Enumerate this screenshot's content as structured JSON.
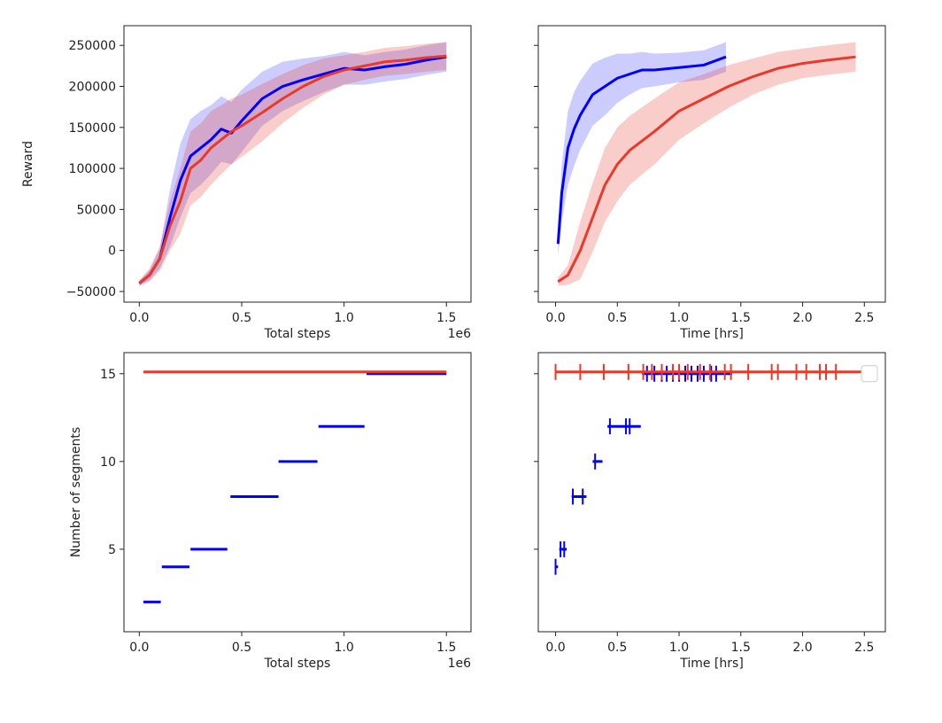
{
  "colors": {
    "blue": "#0000ff",
    "red": "#e8392b",
    "blue_band": "rgba(0,0,255,0.2)",
    "red_band": "rgba(232,57,43,0.25)"
  },
  "chart_data": [
    {
      "id": "reward-vs-steps",
      "type": "line",
      "xlabel": "Total steps",
      "ylabel": "Reward",
      "x_offset_label": "1e6",
      "xlim": [
        -0.075,
        1.62
      ],
      "ylim": [
        -63000,
        274000
      ],
      "xticks": [
        0.0,
        0.5,
        1.0,
        1.5
      ],
      "xtick_labels": [
        "0.0",
        "0.5",
        "1.0",
        "1.5"
      ],
      "yticks": [
        -50000,
        0,
        50000,
        100000,
        150000,
        200000,
        250000
      ],
      "ytick_labels": [
        "−50000",
        "0",
        "50000",
        "100000",
        "150000",
        "200000",
        "250000"
      ],
      "series": [
        {
          "name": "blue",
          "color": "#0000ff",
          "x": [
            0.0,
            0.05,
            0.1,
            0.15,
            0.2,
            0.25,
            0.3,
            0.35,
            0.4,
            0.45,
            0.5,
            0.6,
            0.7,
            0.8,
            0.9,
            1.0,
            1.1,
            1.2,
            1.3,
            1.4,
            1.5
          ],
          "y": [
            -40000,
            -30000,
            -10000,
            40000,
            85000,
            115000,
            125000,
            135000,
            148000,
            143000,
            158000,
            185000,
            200000,
            208000,
            215000,
            222000,
            220000,
            224000,
            227000,
            232000,
            236000
          ],
          "std": [
            3000,
            6000,
            12000,
            35000,
            45000,
            45000,
            45000,
            42000,
            40000,
            38000,
            38000,
            33000,
            30000,
            26000,
            22000,
            20000,
            18000,
            18000,
            18000,
            18000,
            18000
          ]
        },
        {
          "name": "red",
          "color": "#e8392b",
          "x": [
            0.0,
            0.05,
            0.1,
            0.15,
            0.2,
            0.25,
            0.3,
            0.35,
            0.4,
            0.45,
            0.5,
            0.6,
            0.7,
            0.8,
            0.9,
            1.0,
            1.1,
            1.2,
            1.3,
            1.4,
            1.5
          ],
          "y": [
            -40000,
            -30000,
            -10000,
            30000,
            60000,
            100000,
            110000,
            125000,
            135000,
            145000,
            152000,
            168000,
            185000,
            200000,
            212000,
            220000,
            225000,
            230000,
            232000,
            235000,
            237000
          ],
          "std": [
            3000,
            8000,
            15000,
            30000,
            40000,
            45000,
            45000,
            45000,
            42000,
            40000,
            38000,
            35000,
            30000,
            26000,
            22000,
            18000,
            17000,
            17000,
            17000,
            17000,
            17000
          ]
        }
      ]
    },
    {
      "id": "reward-vs-time",
      "type": "line",
      "xlabel": "Time [hrs]",
      "ylabel": "",
      "xlim": [
        -0.14,
        2.67
      ],
      "ylim": [
        -63000,
        274000
      ],
      "xticks": [
        0.0,
        0.5,
        1.0,
        1.5,
        2.0,
        2.5
      ],
      "xtick_labels": [
        "0.0",
        "0.5",
        "1.0",
        "1.5",
        "2.0",
        "2.5"
      ],
      "yticks": [
        -50000,
        0,
        50000,
        100000,
        150000,
        200000,
        250000
      ],
      "series": [
        {
          "name": "blue",
          "color": "#0000ff",
          "x": [
            0.02,
            0.05,
            0.1,
            0.15,
            0.2,
            0.3,
            0.4,
            0.5,
            0.6,
            0.7,
            0.8,
            1.0,
            1.2,
            1.38
          ],
          "y": [
            8000,
            70000,
            125000,
            148000,
            165000,
            190000,
            200000,
            210000,
            215000,
            220000,
            220000,
            223000,
            226000,
            236000
          ],
          "std": [
            15000,
            35000,
            45000,
            45000,
            42000,
            38000,
            35000,
            30000,
            25000,
            22000,
            20000,
            18000,
            18000,
            18000
          ]
        },
        {
          "name": "red",
          "color": "#e8392b",
          "x": [
            0.02,
            0.1,
            0.2,
            0.3,
            0.4,
            0.5,
            0.6,
            0.8,
            1.0,
            1.2,
            1.4,
            1.6,
            1.8,
            2.0,
            2.2,
            2.43
          ],
          "y": [
            -38000,
            -30000,
            0,
            40000,
            80000,
            105000,
            122000,
            145000,
            170000,
            185000,
            200000,
            212000,
            222000,
            228000,
            232000,
            236000
          ],
          "std": [
            5000,
            12000,
            35000,
            42000,
            45000,
            45000,
            42000,
            40000,
            35000,
            30000,
            26000,
            22000,
            20000,
            18000,
            18000,
            18000
          ]
        }
      ]
    },
    {
      "id": "segments-vs-steps",
      "type": "step",
      "xlabel": "Total steps",
      "ylabel": "Number of segments",
      "x_offset_label": "1e6",
      "xlim": [
        -0.075,
        1.62
      ],
      "ylim": [
        0.3,
        16.2
      ],
      "xticks": [
        0.0,
        0.5,
        1.0,
        1.5
      ],
      "xtick_labels": [
        "0.0",
        "0.5",
        "1.0",
        "1.5"
      ],
      "yticks": [
        5,
        10,
        15
      ],
      "ytick_labels": [
        "5",
        "10",
        "15"
      ],
      "series": [
        {
          "name": "blue",
          "color": "#0000ff",
          "segments": [
            [
              0.02,
              0.105,
              2
            ],
            [
              0.11,
              0.245,
              4
            ],
            [
              0.25,
              0.43,
              5
            ],
            [
              0.445,
              0.68,
              8
            ],
            [
              0.68,
              0.87,
              10
            ],
            [
              0.875,
              1.1,
              12
            ],
            [
              1.11,
              1.5,
              15
            ]
          ]
        },
        {
          "name": "red",
          "color": "#e8392b",
          "segments": [
            [
              0.02,
              1.5,
              15.1
            ]
          ]
        }
      ]
    },
    {
      "id": "segments-vs-time",
      "type": "scatter",
      "xlabel": "Time [hrs]",
      "ylabel": "",
      "xlim": [
        -0.14,
        2.67
      ],
      "ylim": [
        0.3,
        16.2
      ],
      "xticks": [
        0.0,
        0.5,
        1.0,
        1.5,
        2.0,
        2.5
      ],
      "xtick_labels": [
        "0.0",
        "0.5",
        "1.0",
        "1.5",
        "2.0",
        "2.5"
      ],
      "yticks": [
        5,
        10,
        15
      ],
      "legend": "top-right (empty)",
      "series": [
        {
          "name": "blue",
          "color": "#0000ff",
          "lines": [
            [
              0.0,
              0.02,
              4
            ],
            [
              0.03,
              0.09,
              5
            ],
            [
              0.13,
              0.25,
              8
            ],
            [
              0.3,
              0.38,
              10
            ],
            [
              0.42,
              0.69,
              12
            ],
            [
              0.7,
              1.43,
              15
            ]
          ],
          "marks": [
            [
              0.0,
              4
            ],
            [
              0.04,
              5
            ],
            [
              0.07,
              5
            ],
            [
              0.14,
              8
            ],
            [
              0.22,
              8
            ],
            [
              0.32,
              10
            ],
            [
              0.44,
              12
            ],
            [
              0.57,
              12
            ],
            [
              0.6,
              12
            ],
            [
              0.74,
              15
            ],
            [
              0.8,
              15
            ],
            [
              0.86,
              15
            ],
            [
              0.9,
              15
            ],
            [
              0.95,
              15
            ],
            [
              1.0,
              15
            ],
            [
              1.05,
              15
            ],
            [
              1.1,
              15
            ],
            [
              1.15,
              15
            ],
            [
              1.2,
              15
            ],
            [
              1.26,
              15
            ],
            [
              1.3,
              15
            ]
          ]
        },
        {
          "name": "red",
          "color": "#e8392b",
          "lines": [
            [
              0.0,
              2.55,
              15.1
            ]
          ],
          "marks": [
            [
              0.0,
              15.1
            ],
            [
              0.2,
              15.1
            ],
            [
              0.39,
              15.1
            ],
            [
              0.59,
              15.1
            ],
            [
              0.71,
              15.1
            ],
            [
              0.78,
              15.1
            ],
            [
              0.86,
              15.1
            ],
            [
              0.95,
              15.1
            ],
            [
              1.0,
              15.1
            ],
            [
              1.07,
              15.1
            ],
            [
              1.17,
              15.1
            ],
            [
              1.25,
              15.1
            ],
            [
              1.37,
              15.1
            ],
            [
              1.42,
              15.1
            ],
            [
              1.56,
              15.1
            ],
            [
              1.75,
              15.1
            ],
            [
              1.8,
              15.1
            ],
            [
              1.95,
              15.1
            ],
            [
              2.03,
              15.1
            ],
            [
              2.14,
              15.1
            ],
            [
              2.19,
              15.1
            ],
            [
              2.27,
              15.1
            ]
          ]
        }
      ]
    }
  ]
}
